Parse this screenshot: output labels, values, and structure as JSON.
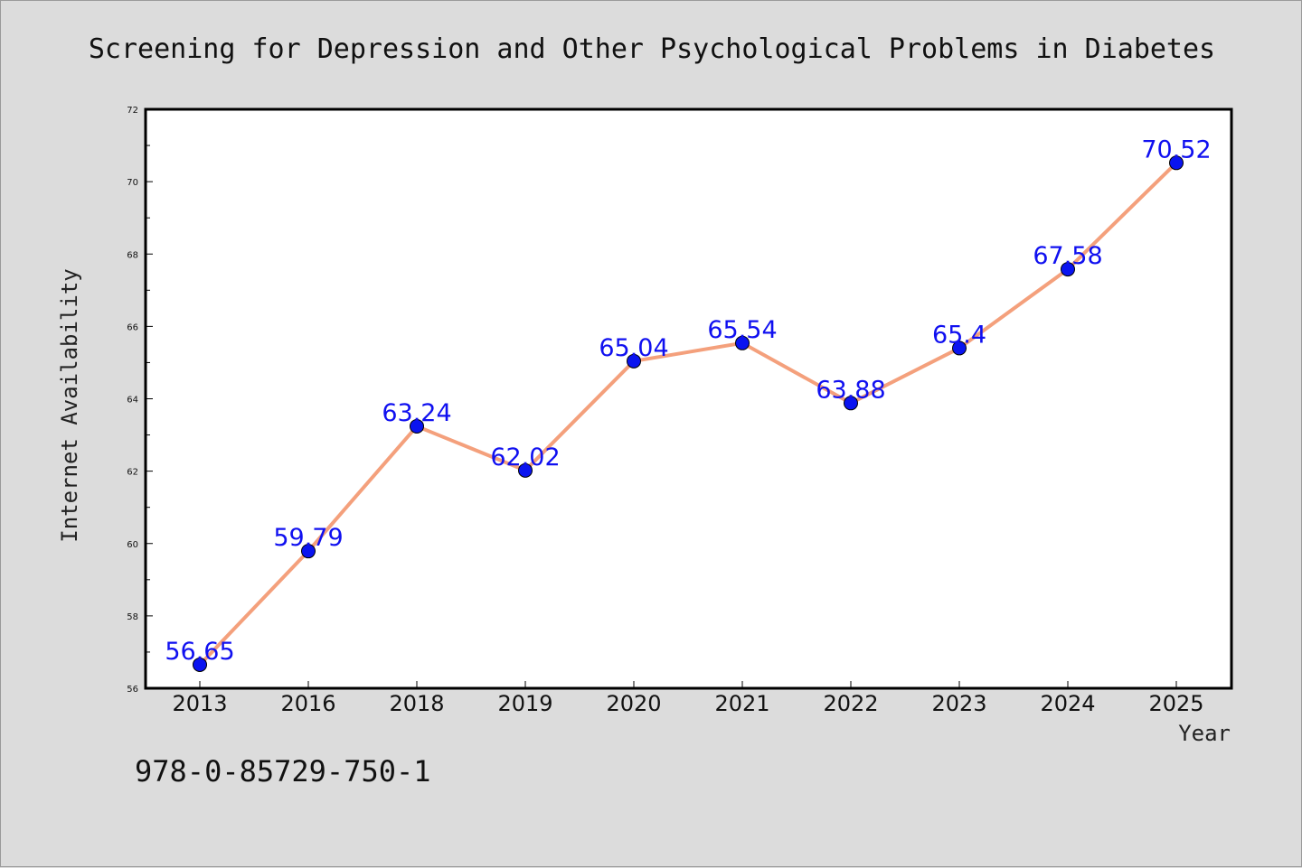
{
  "chart_data": {
    "type": "line",
    "title": "Screening for Depression and Other Psychological Problems in Diabetes",
    "xlabel": "Year",
    "ylabel": "Internet Availability",
    "categories": [
      "2013",
      "2016",
      "2018",
      "2019",
      "2020",
      "2021",
      "2022",
      "2023",
      "2024",
      "2025"
    ],
    "series": [
      {
        "values": [
          56.65,
          59.79,
          63.24,
          62.02,
          65.04,
          65.54,
          63.88,
          65.4,
          67.58,
          70.52
        ],
        "data_labels": [
          "56.65",
          "59.79",
          "63.24",
          "62.02",
          "65.04",
          "65.54",
          "63.88",
          "65.4",
          "67.58",
          "70.52"
        ]
      }
    ],
    "ylim": [
      56,
      72
    ],
    "yticks": [
      56,
      58,
      60,
      62,
      64,
      66,
      68,
      70,
      72
    ],
    "grid": false,
    "line_color": "#f4a07c",
    "marker_color": "#0a14f0",
    "label_color": "#1010f0",
    "plot_background": "#ffffff"
  },
  "footer_text": "978-0-85729-750-1"
}
